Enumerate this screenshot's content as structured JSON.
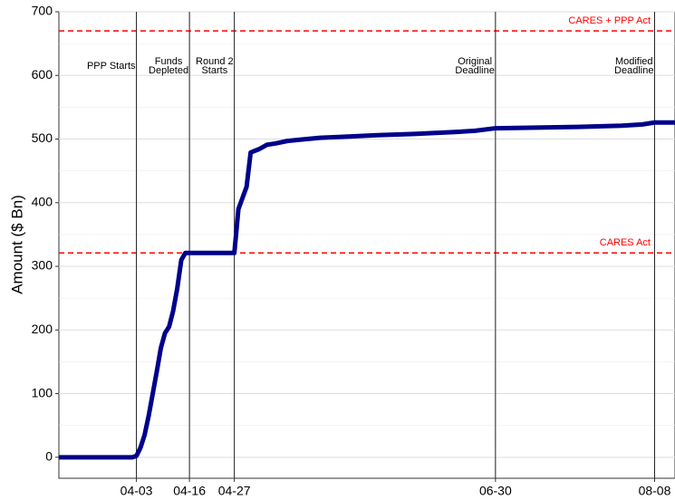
{
  "chart_data": {
    "type": "line",
    "y_label": "Amount ($ Bn)",
    "x": [
      "03-15",
      "04-02",
      "04-03",
      "04-04",
      "04-05",
      "04-06",
      "04-07",
      "04-08",
      "04-09",
      "04-10",
      "04-11",
      "04-12",
      "04-13",
      "04-14",
      "04-15",
      "04-26",
      "04-27",
      "04-28",
      "04-30",
      "05-01",
      "05-03",
      "05-05",
      "05-07",
      "05-10",
      "05-13",
      "05-18",
      "05-25",
      "06-01",
      "06-10",
      "06-20",
      "06-25",
      "06-30",
      "07-10",
      "07-20",
      "07-31",
      "08-05",
      "08-08",
      "08-13"
    ],
    "series": [
      {
        "color": "#00008b",
        "values": [
          0,
          0,
          2,
          15,
          35,
          65,
          100,
          135,
          172,
          195,
          205,
          230,
          265,
          310,
          321,
          321,
          321,
          390,
          425,
          479,
          484,
          491,
          493,
          497,
          499,
          502,
          504,
          506,
          508,
          511,
          513,
          517,
          518,
          519,
          521,
          523,
          526,
          526
        ]
      }
    ],
    "xlim": [
      "03-15",
      "08-13"
    ],
    "xticks": [
      "04-03",
      "04-16",
      "04-27",
      "06-30",
      "08-08"
    ],
    "ylim": [
      -33,
      700
    ],
    "yticks": [
      0,
      100,
      200,
      300,
      400,
      500,
      600,
      700
    ],
    "grid": true,
    "vlines": [
      {
        "x": "04-03",
        "label": [
          "PPP Starts"
        ]
      },
      {
        "x": "04-16",
        "label": [
          "Funds",
          "Depleted"
        ]
      },
      {
        "x": "04-27",
        "label": [
          "Round 2",
          "Starts"
        ]
      },
      {
        "x": "06-30",
        "label": [
          "Original",
          "Deadline"
        ]
      },
      {
        "x": "08-08",
        "label": [
          "Modified",
          "Deadline"
        ]
      }
    ],
    "hlines": [
      {
        "y": 670,
        "label": "CARES + PPP Act",
        "color": "#ff0000"
      },
      {
        "y": 321,
        "label": "CARES Act",
        "color": "#ff0000"
      }
    ]
  }
}
